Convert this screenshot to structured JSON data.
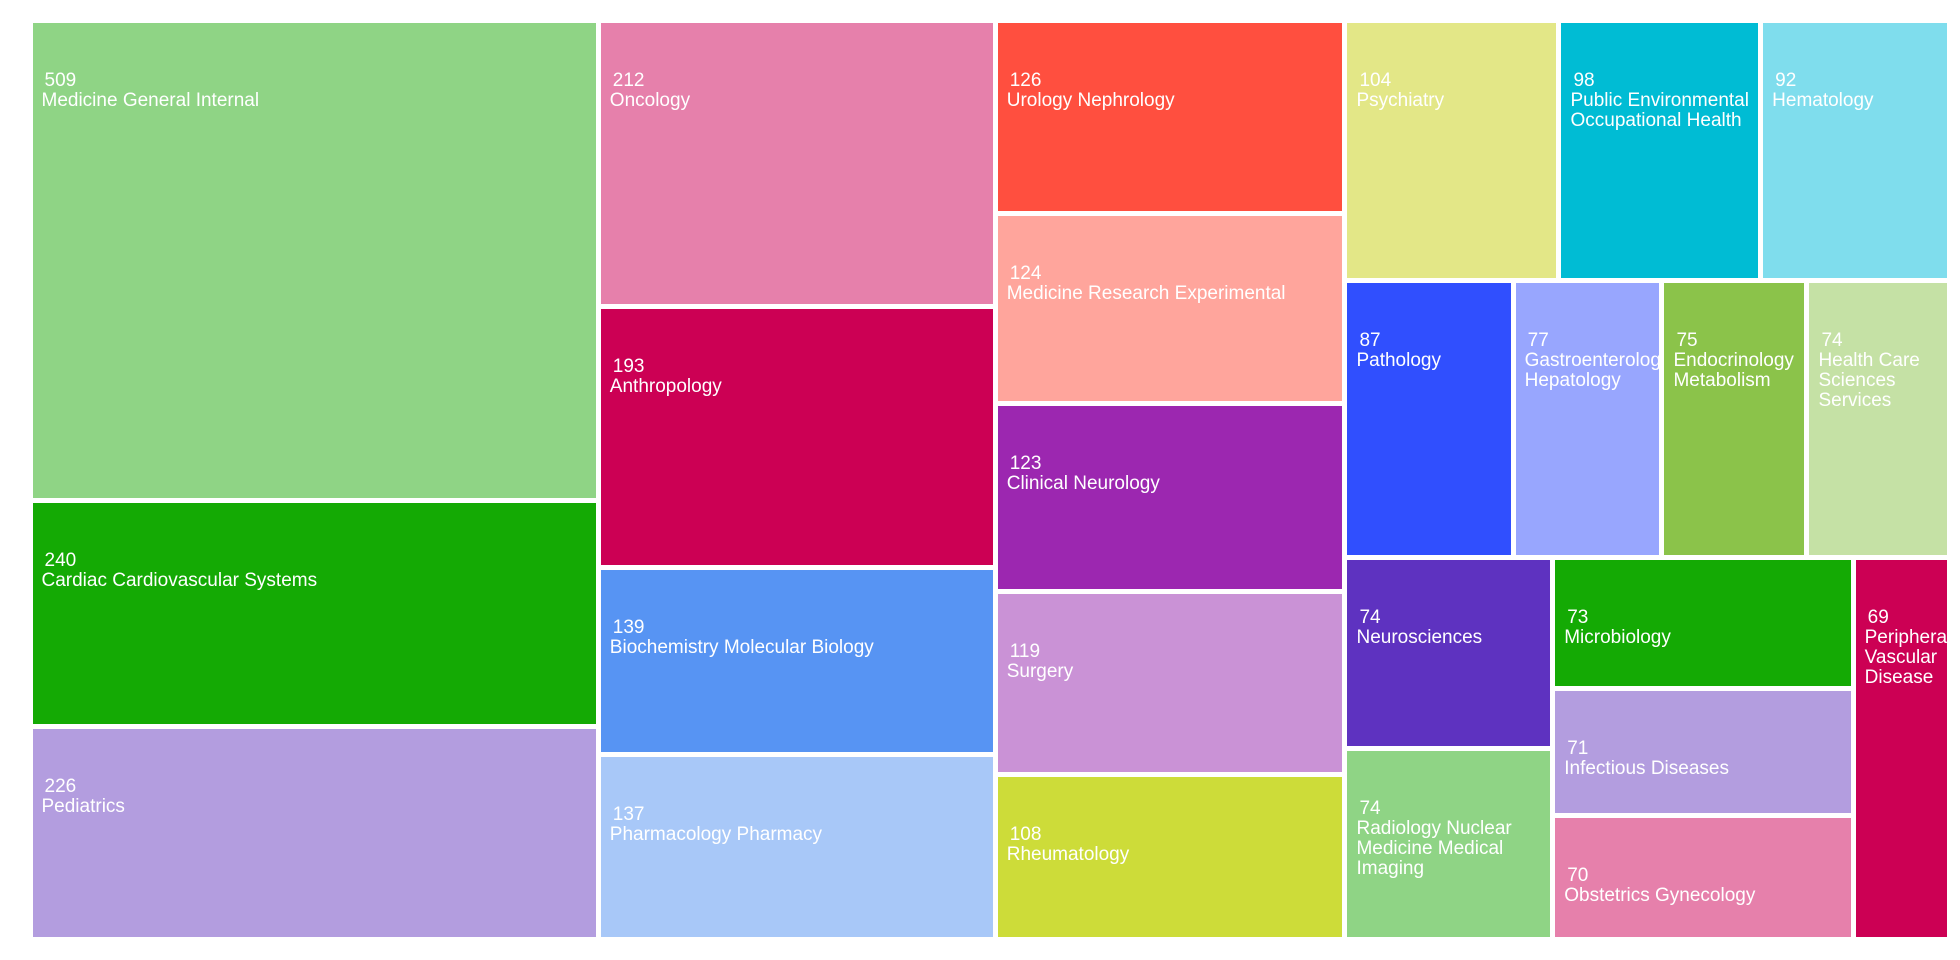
{
  "chart_data": {
    "type": "treemap",
    "categories": [
      "Medicine General Internal",
      "Cardiac Cardiovascular Systems",
      "Pediatrics",
      "Oncology",
      "Anthropology",
      "Biochemistry Molecular Biology",
      "Pharmacology Pharmacy",
      "Urology Nephrology",
      "Medicine Research Experimental",
      "Clinical Neurology",
      "Surgery",
      "Rheumatology",
      "Psychiatry",
      "Public Environmental Occupational Health",
      "Hematology",
      "Pathology",
      "Gastroenterology Hepatology",
      "Endocrinology Metabolism",
      "Health Care Sciences Services",
      "Neurosciences",
      "Radiology Nuclear Medicine Medical Imaging",
      "Microbiology",
      "Infectious Diseases",
      "Obstetrics Gynecology",
      "Peripheral Vascular Disease"
    ],
    "values": [
      509,
      240,
      226,
      212,
      193,
      139,
      137,
      126,
      124,
      123,
      119,
      108,
      104,
      98,
      92,
      87,
      77,
      75,
      74,
      74,
      74,
      73,
      71,
      70,
      69
    ],
    "colors": [
      "#8fd485",
      "#14aa04",
      "#b39ddf",
      "#e680ab",
      "#cc0054",
      "#5794f3",
      "#a8c8f8",
      "#ff4f3f",
      "#ffa59c",
      "#9c27b0",
      "#ca92d6",
      "#cddc39",
      "#e3e787",
      "#00bcd4",
      "#7fdded",
      "#304ffe",
      "#98a6fe",
      "#8bc34a",
      "#c5e1a5",
      "#5e32c0",
      "#8fd485",
      "#14aa04",
      "#b39ddf",
      "#e680ab",
      "#cc0054"
    ]
  }
}
